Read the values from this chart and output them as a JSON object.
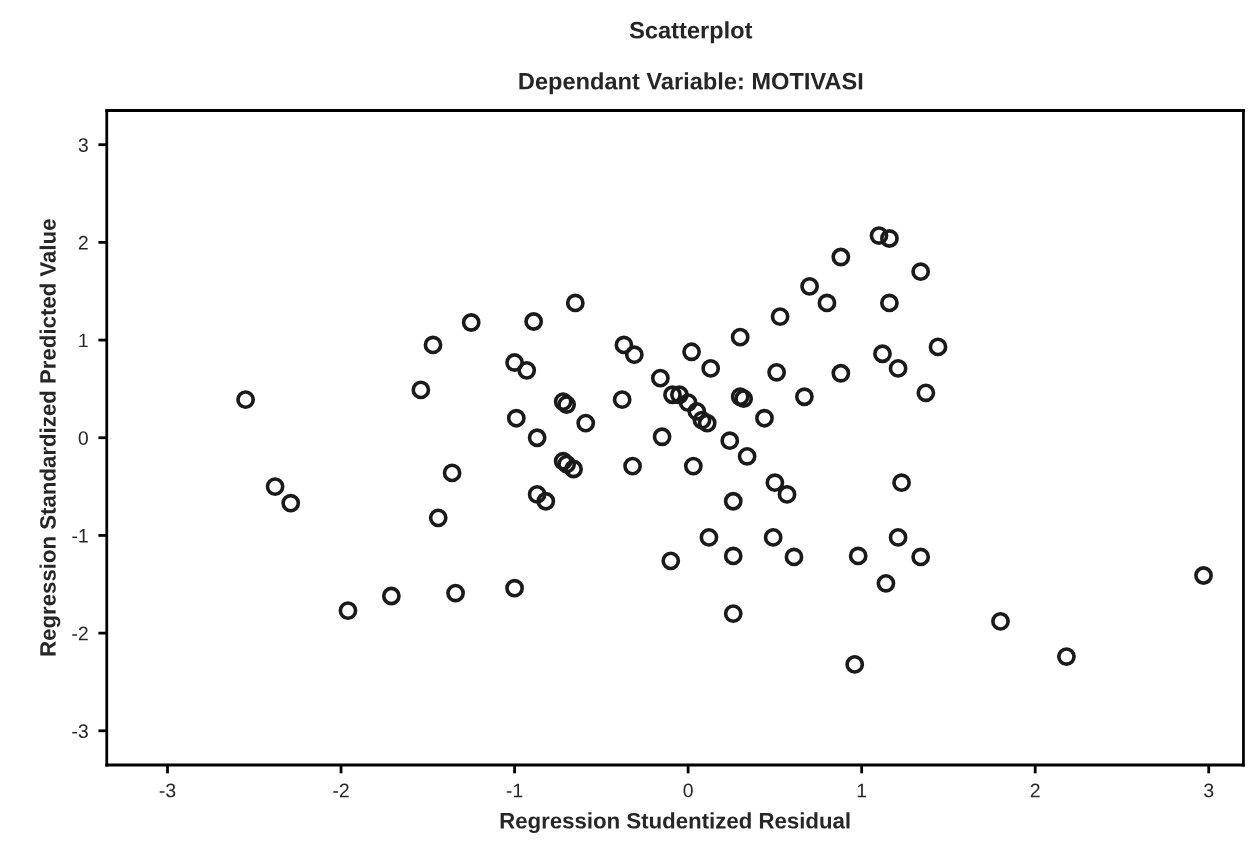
{
  "chart_data": {
    "type": "scatter",
    "title": "Scatterplot",
    "subtitle": "Dependant Variable: MOTIVASI",
    "xlabel": "Regression Studentized Residual",
    "ylabel": "Regression Standardized Predicted Value",
    "xlim": [
      -3.35,
      3.2
    ],
    "ylim": [
      -3.35,
      3.35
    ],
    "xticks": [
      -3,
      -2,
      -1,
      0,
      1,
      2,
      3
    ],
    "yticks": [
      -3,
      -2,
      -1,
      0,
      1,
      2,
      3
    ],
    "marker": "circle",
    "series": [
      {
        "color": "#1a1a1a",
        "x": [
          -2.55,
          -1.54,
          -1.47,
          -1.25,
          -0.89,
          -0.65,
          -1.0,
          -0.93,
          -0.99,
          -0.87,
          -0.72,
          -0.7,
          -0.59,
          -0.38,
          -0.37,
          -0.31,
          -0.16,
          -0.15,
          -0.09,
          1.1,
          1.16,
          0.88,
          1.34,
          0.7,
          0.8,
          1.16,
          0.53,
          0.3,
          0.02,
          0.13,
          0.51,
          0.88,
          1.12,
          1.21,
          1.44,
          1.37,
          0.67,
          -0.05,
          0.0,
          0.05,
          0.08,
          0.11,
          0.3,
          0.32,
          0.44,
          0.24,
          0.34,
          -2.38,
          -2.29,
          -1.36,
          -1.44,
          -1.96,
          -1.71,
          -1.34,
          -1.0,
          -0.7,
          -0.66,
          -0.72,
          -0.87,
          -0.82,
          -0.32,
          -0.1,
          0.03,
          0.5,
          0.57,
          0.26,
          1.23,
          0.12,
          0.49,
          1.21,
          0.26,
          0.61,
          0.98,
          1.34,
          1.14,
          0.26,
          0.96,
          1.8,
          2.18,
          2.97
        ],
        "values": [
          0.39,
          0.49,
          0.95,
          1.18,
          1.19,
          1.38,
          0.77,
          0.69,
          0.2,
          0.0,
          0.37,
          0.34,
          0.15,
          0.39,
          0.95,
          0.85,
          0.61,
          0.01,
          0.44,
          2.07,
          2.04,
          1.85,
          1.7,
          1.55,
          1.38,
          1.38,
          1.24,
          1.03,
          0.88,
          0.71,
          0.67,
          0.66,
          0.86,
          0.71,
          0.93,
          0.46,
          0.42,
          0.44,
          0.36,
          0.27,
          0.18,
          0.15,
          0.42,
          0.4,
          0.2,
          -0.03,
          -0.19,
          -0.5,
          -0.67,
          -0.36,
          -0.82,
          -1.77,
          -1.62,
          -1.59,
          -1.54,
          -0.27,
          -0.32,
          -0.24,
          -0.58,
          -0.65,
          -0.29,
          -1.26,
          -0.29,
          -0.46,
          -0.58,
          -0.65,
          -0.46,
          -1.02,
          -1.02,
          -1.02,
          -1.21,
          -1.22,
          -1.21,
          -1.22,
          -1.49,
          -1.8,
          -2.32,
          -1.88,
          -2.24,
          -1.41
        ]
      }
    ]
  }
}
